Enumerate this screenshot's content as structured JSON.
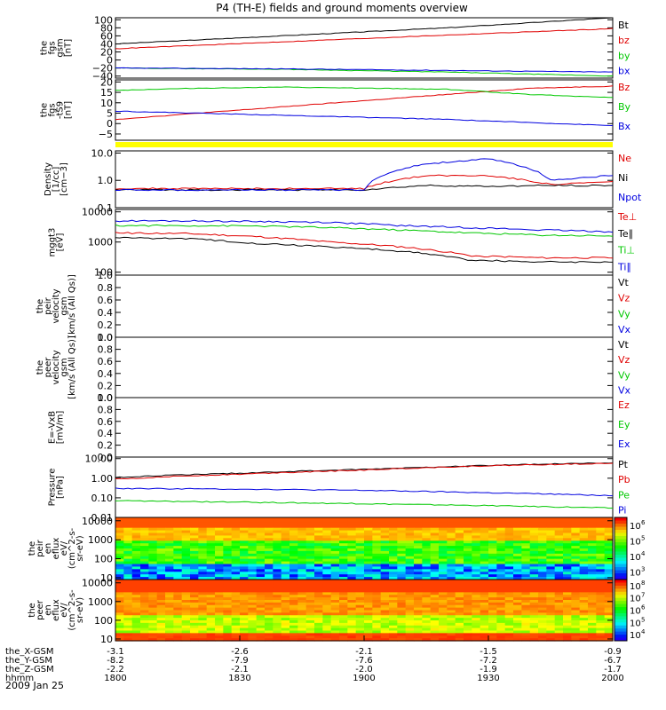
{
  "title": "P4 (TH-E) fields and ground moments overview",
  "date_label": "2009 Jan 25",
  "ephemeris": {
    "rows": [
      {
        "label": "the_X-GSM",
        "values": [
          "-3.1",
          "-2.6",
          "-2.1",
          "-1.5",
          "-0.9"
        ]
      },
      {
        "label": "the_Y-GSM",
        "values": [
          "-8.2",
          "-7.9",
          "-7.6",
          "-7.2",
          "-6.7"
        ]
      },
      {
        "label": "the_Z-GSM",
        "values": [
          "-2.2",
          "-2.1",
          "-2.0",
          "-1.9",
          "-1.7"
        ]
      },
      {
        "label": "hhmm",
        "values": [
          "1800",
          "1830",
          "1900",
          "1930",
          "2000"
        ]
      }
    ]
  },
  "colors": {
    "black": "#000000",
    "red": "#e00000",
    "green": "#00c800",
    "blue": "#0000e0",
    "yellow": "#ffff00"
  },
  "chart_data": [
    {
      "type": "line",
      "id": "fgs_gsm",
      "ylabel": [
        "the",
        "fgs",
        "gsm",
        "[nT]"
      ],
      "ylim": [
        -45,
        105
      ],
      "ticks": [
        100,
        80,
        60,
        40,
        20,
        0,
        -20,
        -40
      ],
      "tick_labels": [
        "100",
        "80",
        "60",
        "40",
        "20",
        "0",
        "−20",
        "−40"
      ],
      "series": [
        {
          "name": "Bt",
          "color": "#000000",
          "values": [
            40,
            60,
            80,
            105
          ]
        },
        {
          "name": "bz",
          "color": "#e00000",
          "values": [
            28,
            45,
            62,
            78
          ]
        },
        {
          "name": "by",
          "color": "#00c800",
          "values": [
            -20,
            -23,
            -30,
            -40
          ]
        },
        {
          "name": "bx",
          "color": "#0000e0",
          "values": [
            -20,
            -22,
            -26,
            -30
          ]
        }
      ]
    },
    {
      "type": "line",
      "id": "fgs_dsl",
      "ylabel": [
        "the",
        "fgs",
        "-tS9",
        "[nT]"
      ],
      "ylim": [
        -8,
        21
      ],
      "ticks": [
        20,
        15,
        10,
        5,
        0,
        -5
      ],
      "tick_labels": [
        "20",
        "15",
        "10",
        "5",
        "0",
        "−5"
      ],
      "series": [
        {
          "name": "Bz",
          "color": "#e00000",
          "values": [
            2,
            5,
            8,
            11,
            14,
            17,
            18
          ]
        },
        {
          "name": "By",
          "color": "#00c800",
          "values": [
            16,
            17,
            17.5,
            17,
            16.5,
            14,
            12.5
          ]
        },
        {
          "name": "Bx",
          "color": "#0000e0",
          "values": [
            6,
            5,
            4,
            3,
            2,
            0.5,
            -1
          ]
        }
      ]
    },
    {
      "type": "line",
      "id": "density",
      "scale": "log",
      "ylabel": [
        "Density",
        "[1/cc]",
        "[cm−3]"
      ],
      "ylim": [
        0.1,
        12
      ],
      "ticks": [
        10,
        1,
        0.1
      ],
      "tick_labels": [
        "10.0",
        "1.0",
        "0.1"
      ],
      "series": [
        {
          "name": "Ne",
          "color": "#e00000",
          "values": [
            0.5,
            0.5,
            0.5,
            0.5,
            0.5,
            1.5,
            1.5,
            0.7,
            0.9
          ]
        },
        {
          "name": "Ni",
          "color": "#000000",
          "values": [
            0.45,
            0.45,
            0.45,
            0.45,
            0.45,
            0.65,
            0.6,
            0.65,
            0.65
          ]
        },
        {
          "name": "Npot",
          "color": "#0000e0",
          "values": [
            0.45,
            0.45,
            0.45,
            0.45,
            0.45,
            4,
            6,
            1,
            1.5
          ]
        }
      ]
    },
    {
      "type": "line",
      "id": "temp",
      "scale": "log",
      "ylabel": [
        "mggt3",
        "[eV]"
      ],
      "ylim": [
        80,
        12000
      ],
      "ticks": [
        10000,
        1000,
        100
      ],
      "tick_labels": [
        "10000",
        "1000",
        "100"
      ],
      "series": [
        {
          "name": "Te⊥",
          "color": "#e00000",
          "values": [
            2000,
            1900,
            1500,
            1000,
            700,
            350,
            300,
            300
          ]
        },
        {
          "name": "Te∥",
          "color": "#000000",
          "values": [
            1400,
            1300,
            900,
            700,
            500,
            250,
            220,
            220
          ]
        },
        {
          "name": "Ti⊥",
          "color": "#00c800",
          "values": [
            3500,
            3500,
            3400,
            3000,
            2500,
            2000,
            1700,
            1600
          ]
        },
        {
          "name": "Ti∥",
          "color": "#0000e0",
          "values": [
            5000,
            5000,
            4800,
            4500,
            3500,
            3000,
            2500,
            2200
          ]
        }
      ]
    },
    {
      "type": "line",
      "id": "peir_vel",
      "ylabel": [
        "the",
        "peir",
        "velocity",
        "gsm",
        "[km/s (All Qs)]"
      ],
      "ylim": [
        0,
        1
      ],
      "ticks": [
        1,
        0.8,
        0.6,
        0.4,
        0.2,
        0
      ],
      "tick_labels": [
        "1.0",
        "0.8",
        "0.6",
        "0.4",
        "0.2",
        "0.0"
      ],
      "series": [
        {
          "name": "Vt",
          "color": "#000000"
        },
        {
          "name": "Vz",
          "color": "#e00000"
        },
        {
          "name": "Vy",
          "color": "#00c800"
        },
        {
          "name": "Vx",
          "color": "#0000e0"
        }
      ]
    },
    {
      "type": "line",
      "id": "peer_vel",
      "ylabel": [
        "the",
        "peer",
        "velocity",
        "gsm",
        "[km/s (All Qs)]"
      ],
      "ylim": [
        0,
        1
      ],
      "ticks": [
        1,
        0.8,
        0.6,
        0.4,
        0.2,
        0
      ],
      "tick_labels": [
        "1.0",
        "0.8",
        "0.6",
        "0.4",
        "0.2",
        "0.0"
      ],
      "series": [
        {
          "name": "Vt",
          "color": "#000000"
        },
        {
          "name": "Vz",
          "color": "#e00000"
        },
        {
          "name": "Vy",
          "color": "#00c800"
        },
        {
          "name": "Vx",
          "color": "#0000e0"
        }
      ]
    },
    {
      "type": "line",
      "id": "efield",
      "ylabel": [
        "E=-VxB",
        "[mV/m]"
      ],
      "ylim": [
        0,
        1
      ],
      "ticks": [
        1,
        0.8,
        0.6,
        0.4,
        0.2,
        0
      ],
      "tick_labels": [
        "1.0",
        "0.8",
        "0.6",
        "0.4",
        "0.2",
        "0.0"
      ],
      "series": [
        {
          "name": "Ez",
          "color": "#e00000"
        },
        {
          "name": "Ey",
          "color": "#00c800"
        },
        {
          "name": "Ex",
          "color": "#0000e0"
        }
      ]
    },
    {
      "type": "line",
      "id": "pressure",
      "scale": "log",
      "ylabel": [
        "Pressure",
        "[nPa]"
      ],
      "ylim": [
        0.01,
        12
      ],
      "ticks": [
        10,
        1,
        0.1,
        0.01
      ],
      "tick_labels": [
        "10.00",
        "1.00",
        "0.10",
        "0.01"
      ],
      "series": [
        {
          "name": "Pt",
          "color": "#000000",
          "values": [
            1.1,
            1.8,
            2.8,
            4.5,
            6
          ]
        },
        {
          "name": "Pb",
          "color": "#e00000",
          "values": [
            0.9,
            1.6,
            2.6,
            4.3,
            5.8
          ]
        },
        {
          "name": "Pe",
          "color": "#00c800",
          "values": [
            0.07,
            0.06,
            0.05,
            0.04,
            0.03
          ]
        },
        {
          "name": "Pi",
          "color": "#0000e0",
          "values": [
            0.3,
            0.28,
            0.24,
            0.18,
            0.13
          ]
        }
      ]
    },
    {
      "type": "heatmap",
      "id": "peir_spec",
      "scale": "log",
      "ylabel": [
        "the",
        "peir",
        "en",
        "eflux",
        "eV/",
        "(cm^2-s-",
        "sr-eV)"
      ],
      "ylim": [
        8,
        15000
      ],
      "ticks": [
        10000,
        1000,
        100,
        10
      ],
      "tick_labels": [
        "10000",
        "1000",
        "100",
        "10"
      ],
      "colorbar": {
        "ticks": [
          6,
          5,
          4,
          3
        ],
        "tick_labels": [
          "10",
          "10",
          "10",
          "10"
        ],
        "exponents": [
          "6",
          "5",
          "4",
          "3"
        ]
      }
    },
    {
      "type": "heatmap",
      "id": "peer_spec",
      "scale": "log",
      "ylabel": [
        "the",
        "peer",
        "en",
        "eflux",
        "eV/",
        "(cm^2-s-",
        "sr-eV)"
      ],
      "ylim": [
        8,
        15000
      ],
      "ticks": [
        10000,
        1000,
        100,
        10
      ],
      "tick_labels": [
        "10000",
        "1000",
        "100",
        "10"
      ],
      "colorbar": {
        "ticks": [
          8,
          7,
          6,
          5,
          4
        ],
        "tick_labels": [
          "10",
          "10",
          "10",
          "10",
          "10"
        ],
        "exponents": [
          "8",
          "7",
          "6",
          "5",
          "4"
        ]
      }
    }
  ]
}
